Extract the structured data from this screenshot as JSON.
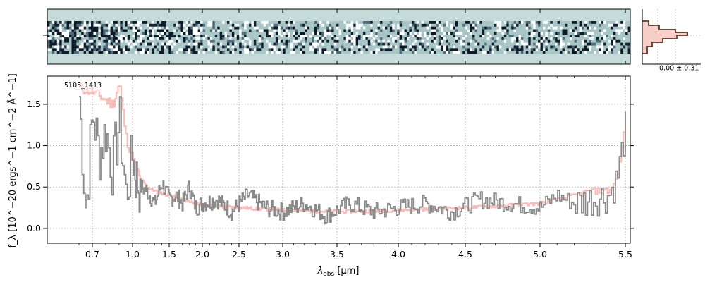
{
  "colors": {
    "spectrum": "#8a8a8a",
    "model": "#f4a7a0",
    "frame": "#000000",
    "grid": "#b0b0b0",
    "trace_bg": "#c5dbd9",
    "hist": "#6b4a3c",
    "hist_fill": "#f7c9c2"
  },
  "trace_panel": {
    "name": "2d-spectrum"
  },
  "profile_panel": {
    "stat_label": "0.00 ± 0.31"
  },
  "chart_data": {
    "type": "line",
    "title": "",
    "object_label": "5105_1413",
    "xlabel_main": "λ",
    "xlabel_sub": "obs",
    "xlabel_unit": " [μm]",
    "ylabel": "f_λ [10^−20 ergs^−1 cm^−2 Å^−1]",
    "x_scale": "reciprocal-like (wavelength axis compressed at long λ)",
    "xlim": [
      0.55,
      5.52
    ],
    "ylim": [
      -0.18,
      1.84
    ],
    "x_ticks": [
      0.7,
      1.0,
      1.5,
      2.0,
      2.5,
      3.0,
      3.5,
      4.0,
      4.5,
      5.0,
      5.5
    ],
    "x_tick_labels": [
      "0.7",
      "1.0",
      "1.5",
      "2.0",
      "2.5",
      "3.0",
      "3.5",
      "4.0",
      "4.5",
      "5.0",
      "5.5"
    ],
    "y_ticks": [
      0.0,
      0.5,
      1.0,
      1.5
    ],
    "y_tick_labels": [
      "0.0",
      "0.5",
      "1.0",
      "1.5"
    ],
    "grid": true,
    "series": [
      {
        "name": "",
        "style": "step",
        "x": [
          0.6,
          0.65,
          0.7,
          0.75,
          0.8,
          0.85,
          0.9,
          0.95,
          1.0,
          1.05,
          1.1,
          1.2,
          1.3,
          1.4,
          1.5,
          1.6,
          1.7,
          1.8,
          1.9,
          2.0,
          2.2,
          2.4,
          2.6,
          2.8,
          3.0,
          3.2,
          3.4,
          3.6,
          3.8,
          4.0,
          4.2,
          4.4,
          4.6,
          4.8,
          5.0,
          5.1,
          5.2,
          5.3,
          5.4,
          5.45,
          5.5
        ],
        "y": [
          1.6,
          0.2,
          1.4,
          0.9,
          1.2,
          0.7,
          1.3,
          0.4,
          0.9,
          0.6,
          0.5,
          0.45,
          0.3,
          0.55,
          0.35,
          0.4,
          0.3,
          0.5,
          0.25,
          0.3,
          0.35,
          0.2,
          0.4,
          0.25,
          0.2,
          0.3,
          0.15,
          0.3,
          0.2,
          0.25,
          0.3,
          0.2,
          0.35,
          0.3,
          0.25,
          0.4,
          0.3,
          0.35,
          0.4,
          0.6,
          1.2
        ]
      },
      {
        "name": "",
        "style": "step",
        "x": [
          0.6,
          0.7,
          0.8,
          0.85,
          0.9,
          0.95,
          1.0,
          1.1,
          1.2,
          1.3,
          1.5,
          1.7,
          2.0,
          2.5,
          3.0,
          3.5,
          4.0,
          4.5,
          5.0,
          5.2,
          5.3,
          5.4,
          5.45,
          5.48,
          5.5
        ],
        "y": [
          1.7,
          1.65,
          1.55,
          1.5,
          1.75,
          1.1,
          0.85,
          0.6,
          0.5,
          0.45,
          0.4,
          0.35,
          0.28,
          0.25,
          0.22,
          0.2,
          0.22,
          0.25,
          0.3,
          0.4,
          0.45,
          0.45,
          0.6,
          1.0,
          1.4
        ]
      }
    ]
  }
}
